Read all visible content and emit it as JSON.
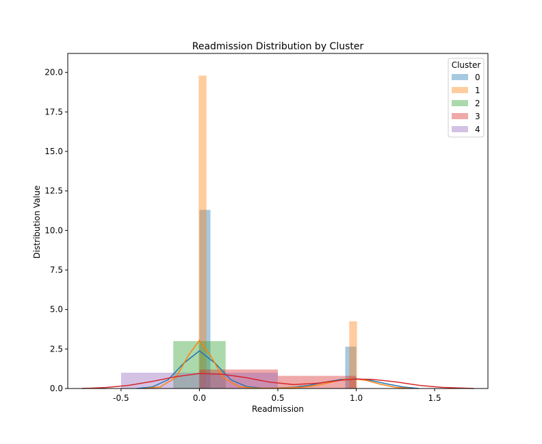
{
  "chart_data": {
    "type": "histogram",
    "title": "Readmission Distribution by Cluster",
    "xlabel": "Readmission",
    "ylabel": "Distribution Value",
    "xlim": [
      -0.84,
      1.84
    ],
    "ylim": [
      0,
      21.2
    ],
    "xticks": [
      "-0.5",
      "0.0",
      "0.5",
      "1.0",
      "1.5"
    ],
    "xtick_values": [
      -0.5,
      0.0,
      0.5,
      1.0,
      1.5
    ],
    "yticks": [
      "0.0",
      "2.5",
      "5.0",
      "7.5",
      "10.0",
      "12.5",
      "15.0",
      "17.5",
      "20.0"
    ],
    "ytick_values": [
      0,
      2.5,
      5.0,
      7.5,
      10.0,
      12.5,
      15.0,
      17.5,
      20.0
    ],
    "legend": {
      "title": "Cluster",
      "position": "top-right"
    },
    "grid": false,
    "series": [
      {
        "name": "0",
        "color": "#1f77b4",
        "bars": [
          {
            "x0": 0.0,
            "x1": 0.07,
            "height": 11.3
          },
          {
            "x0": 0.93,
            "x1": 1.0,
            "height": 2.65
          }
        ],
        "kde": {
          "points": [
            [
              -0.4,
              0.0
            ],
            [
              -0.3,
              0.1
            ],
            [
              -0.2,
              0.55
            ],
            [
              -0.1,
              1.6
            ],
            [
              0.0,
              2.38
            ],
            [
              0.1,
              1.6
            ],
            [
              0.2,
              0.55
            ],
            [
              0.3,
              0.12
            ],
            [
              0.4,
              0.02
            ],
            [
              0.5,
              0.03
            ],
            [
              0.6,
              0.08
            ],
            [
              0.7,
              0.2
            ],
            [
              0.8,
              0.4
            ],
            [
              0.9,
              0.57
            ],
            [
              1.0,
              0.62
            ],
            [
              1.1,
              0.5
            ],
            [
              1.2,
              0.28
            ],
            [
              1.3,
              0.1
            ],
            [
              1.4,
              0.0
            ]
          ]
        }
      },
      {
        "name": "1",
        "color": "#ff7f0e",
        "bars": [
          {
            "x0": -0.005,
            "x1": 0.045,
            "height": 19.8
          },
          {
            "x0": 0.955,
            "x1": 1.005,
            "height": 4.25
          }
        ],
        "kde": {
          "points": [
            [
              -0.35,
              0.0
            ],
            [
              -0.25,
              0.1
            ],
            [
              -0.15,
              0.7
            ],
            [
              -0.07,
              2.1
            ],
            [
              0.0,
              3.05
            ],
            [
              0.07,
              2.1
            ],
            [
              0.15,
              0.7
            ],
            [
              0.25,
              0.12
            ],
            [
              0.35,
              0.02
            ],
            [
              0.5,
              0.02
            ],
            [
              0.65,
              0.08
            ],
            [
              0.75,
              0.2
            ],
            [
              0.85,
              0.42
            ],
            [
              0.93,
              0.58
            ],
            [
              1.0,
              0.6
            ],
            [
              1.07,
              0.5
            ],
            [
              1.15,
              0.28
            ],
            [
              1.25,
              0.08
            ],
            [
              1.35,
              0.0
            ]
          ]
        }
      },
      {
        "name": "2",
        "color": "#2ca02c",
        "bars": [
          {
            "x0": -0.167,
            "x1": 0.167,
            "height": 3.0
          }
        ],
        "kde": {
          "points": []
        }
      },
      {
        "name": "3",
        "color": "#d62728",
        "bars": [
          {
            "x0": 0.0,
            "x1": 0.5,
            "height": 1.2
          },
          {
            "x0": 0.5,
            "x1": 1.0,
            "height": 0.8
          }
        ],
        "kde": {
          "points": [
            [
              -0.75,
              0.0
            ],
            [
              -0.6,
              0.06
            ],
            [
              -0.45,
              0.2
            ],
            [
              -0.3,
              0.45
            ],
            [
              -0.15,
              0.75
            ],
            [
              0.0,
              0.95
            ],
            [
              0.15,
              0.9
            ],
            [
              0.3,
              0.68
            ],
            [
              0.45,
              0.4
            ],
            [
              0.6,
              0.25
            ],
            [
              0.75,
              0.33
            ],
            [
              0.9,
              0.52
            ],
            [
              1.0,
              0.6
            ],
            [
              1.1,
              0.58
            ],
            [
              1.25,
              0.42
            ],
            [
              1.4,
              0.2
            ],
            [
              1.55,
              0.07
            ],
            [
              1.75,
              0.0
            ]
          ]
        }
      },
      {
        "name": "4",
        "color": "#9467bd",
        "bars": [
          {
            "x0": -0.5,
            "x1": 0.5,
            "height": 1.0
          }
        ],
        "kde": {
          "points": []
        }
      }
    ]
  }
}
